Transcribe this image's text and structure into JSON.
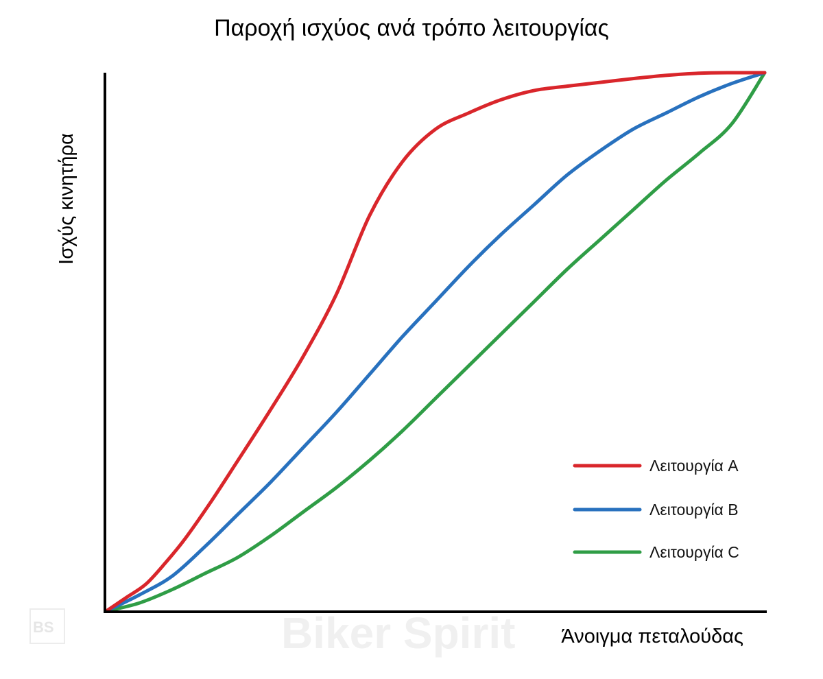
{
  "chart_data": {
    "type": "line",
    "title": "Παροχή ισχύος ανά τρόπο λειτουργίας",
    "xlabel": "Άνοιγμα πεταλούδας",
    "ylabel": "Ισχύς κινητήρα",
    "xlim": [
      0,
      100
    ],
    "ylim": [
      0,
      100
    ],
    "grid": false,
    "legend_position": "bottom-right",
    "series": [
      {
        "name": "Λειτουργία A",
        "color": "#d9262b",
        "x": [
          0,
          3,
          6,
          9,
          12,
          16,
          20,
          25,
          30,
          35,
          40,
          45,
          50,
          55,
          60,
          65,
          70,
          75,
          80,
          85,
          90,
          95,
          100
        ],
        "y": [
          0,
          2.5,
          5,
          9,
          13.5,
          20.5,
          28,
          37.5,
          47.5,
          59,
          73.5,
          83.5,
          89.5,
          92.5,
          95,
          96.7,
          97.5,
          98.2,
          98.9,
          99.5,
          99.9,
          100,
          100
        ]
      },
      {
        "name": "Λειτουργία B",
        "color": "#2871be",
        "x": [
          0,
          5,
          10,
          15,
          20,
          25,
          30,
          35,
          40,
          45,
          50,
          55,
          60,
          65,
          70,
          75,
          80,
          85,
          90,
          95,
          100
        ],
        "y": [
          0,
          3,
          6.5,
          12,
          18,
          24,
          30.5,
          37,
          44,
          51,
          57.5,
          64,
          70,
          75.5,
          81,
          85.5,
          89.5,
          92.5,
          95.5,
          98,
          100
        ]
      },
      {
        "name": "Λειτουργία C",
        "color": "#2f9d46",
        "x": [
          0,
          5,
          10,
          15,
          20,
          25,
          30,
          35,
          40,
          45,
          50,
          55,
          60,
          65,
          70,
          75,
          80,
          85,
          90,
          95,
          100
        ],
        "y": [
          0,
          1.5,
          4,
          7,
          10,
          14,
          18.5,
          23,
          28,
          33.5,
          39.5,
          45.5,
          51.5,
          57.5,
          63.5,
          69,
          74.5,
          80,
          85,
          90.5,
          100
        ]
      }
    ]
  },
  "watermark": {
    "text": "Biker Spirit",
    "logo": "BS"
  }
}
